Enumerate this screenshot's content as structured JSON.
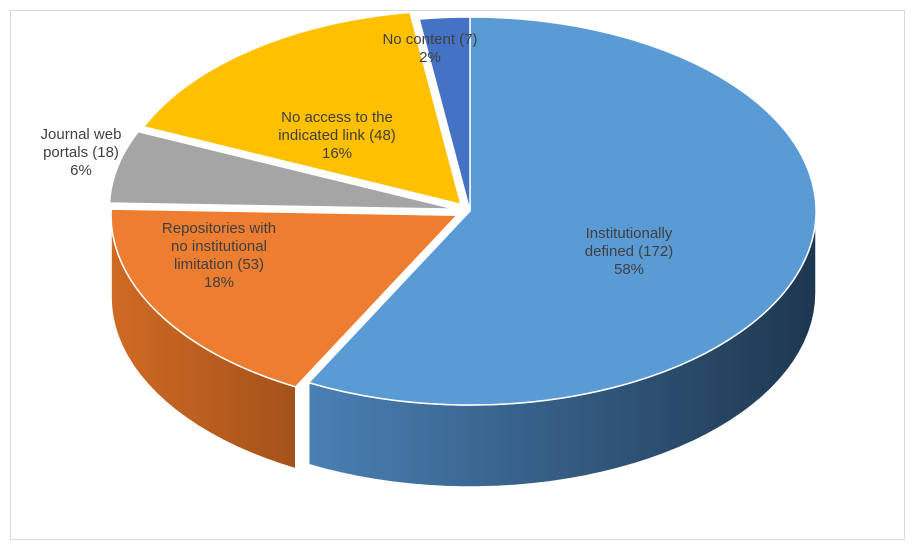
{
  "chart_data": {
    "type": "pie",
    "title": "",
    "style": "3d-exploded",
    "slices": [
      {
        "name": "Institutionally defined",
        "count": 172,
        "percent": 58,
        "label_lines": [
          "Institutionally",
          "defined (172)",
          "58%"
        ],
        "color": "#5B9BD5"
      },
      {
        "name": "Repositories with no institutional limitation",
        "count": 53,
        "percent": 18,
        "label_lines": [
          "Repositories with",
          "no institutional",
          "limitation (53)",
          "18%"
        ],
        "color": "#ED7D31"
      },
      {
        "name": "Journal web portals",
        "count": 18,
        "percent": 6,
        "label_lines": [
          "Journal web",
          "portals (18)",
          "6%"
        ],
        "color": "#A5A5A5"
      },
      {
        "name": "No access to the indicated link",
        "count": 48,
        "percent": 16,
        "label_lines": [
          "No access to the",
          "indicated link (48)",
          "16%"
        ],
        "color": "#FFC000"
      },
      {
        "name": "No content",
        "count": 7,
        "percent": 2,
        "label_lines": [
          "No content (7)",
          "2%"
        ],
        "color": "#4472C4"
      }
    ]
  }
}
